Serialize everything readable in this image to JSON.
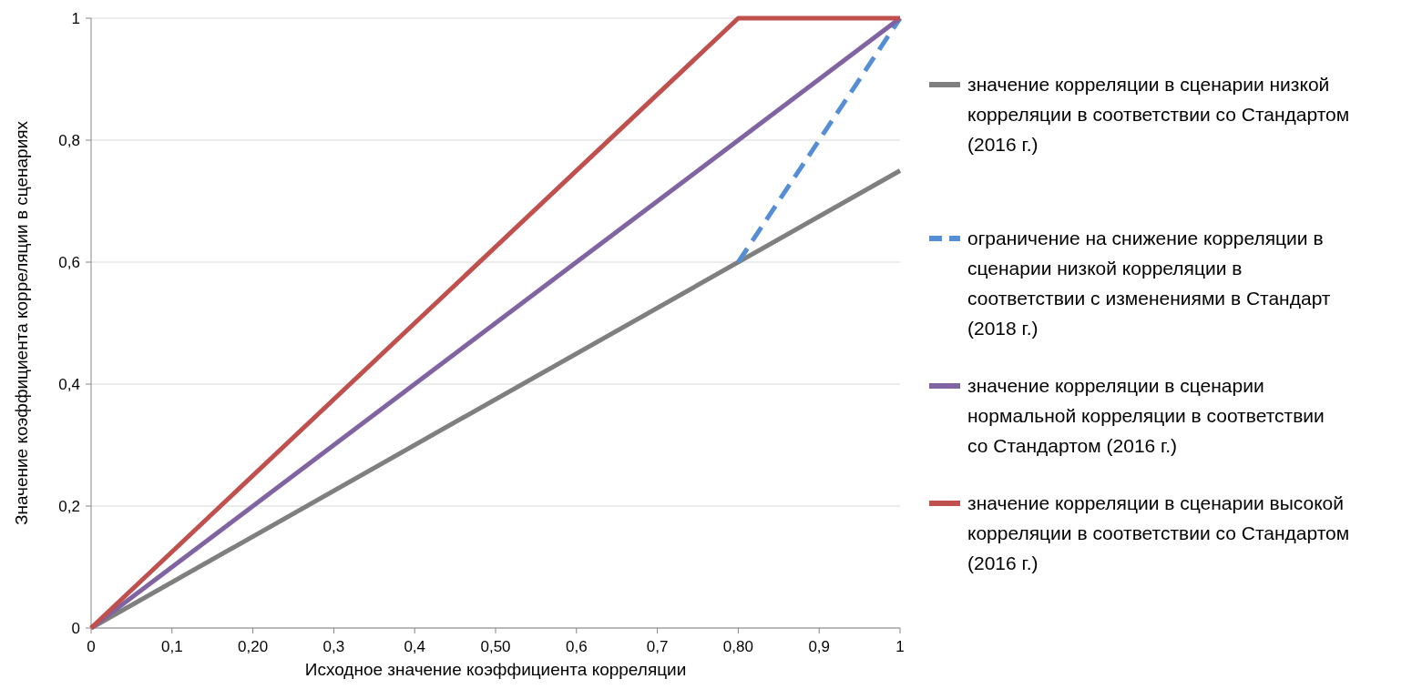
{
  "chart_data": {
    "type": "line",
    "xlabel": "Исходное значение коэффициента корреляции",
    "ylabel": "Значение коэффициента корреляции в сценариях",
    "xlim": [
      0,
      1
    ],
    "xticks": [
      0,
      {
        "value": 0.1,
        "label": "0,1"
      },
      {
        "value": 0.2,
        "label": "0,20"
      },
      {
        "value": 0.3,
        "label": "0,3"
      },
      {
        "value": 0.4,
        "label": "0,4"
      },
      {
        "value": 0.5,
        "label": "0,50"
      },
      {
        "value": 0.6,
        "label": "0,6"
      },
      {
        "value": 0.7,
        "label": "0,7"
      },
      {
        "value": 0.8,
        "label": "0,80"
      },
      {
        "value": 0.9,
        "label": "0,9"
      },
      1
    ],
    "ylim": [
      0,
      1
    ],
    "yticks": [
      0,
      {
        "value": 0.2,
        "label": "0,2"
      },
      {
        "value": 0.4,
        "label": "0,4"
      },
      {
        "value": 0.6,
        "label": "0,6"
      },
      {
        "value": 0.8,
        "label": "0,8"
      },
      1
    ],
    "grid": "y",
    "legend": "right",
    "line_style": "solid",
    "series": [
      {
        "name": "значение корреляции в сценарии низкой корреляции в соответствии со Стандартом (2016 г.)",
        "color": "#7f7f7f",
        "x": [
          0,
          1
        ],
        "values": [
          0,
          0.75
        ]
      },
      {
        "name": "ограничение на снижение корреляции в сценарии низкой корреляции в соответствии с изменениями в Стандарт (2018 г.)",
        "color": "#558ed5",
        "line_style": "dashed",
        "x": [
          0.8,
          1
        ],
        "values": [
          0.6,
          1
        ]
      },
      {
        "name": "значение корреляции в сценарии нормальной корреляции в соответствии со Стандартом (2016 г.)",
        "color": "#8064a2",
        "x": [
          0,
          1
        ],
        "values": [
          0,
          1
        ]
      },
      {
        "name": "значение корреляции в сценарии высокой корреляции в соответствии со Стандартом (2016 г.)",
        "color": "#c0504d",
        "x": [
          0,
          0.8,
          1
        ],
        "values": [
          0,
          1,
          1
        ]
      }
    ]
  }
}
